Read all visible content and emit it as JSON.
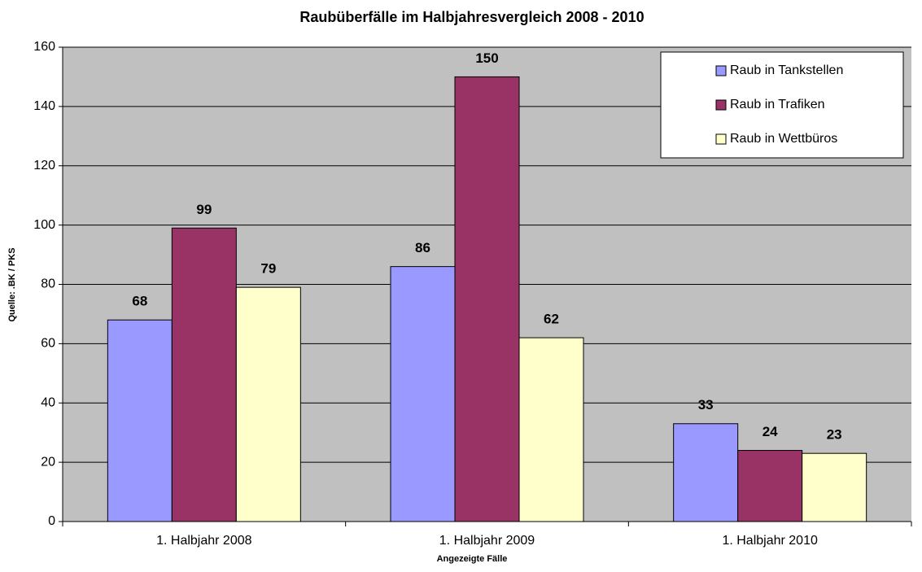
{
  "chart_data": {
    "type": "bar",
    "title": "Raubüberfälle im Halbjahresvergleich 2008 - 2010",
    "xlabel": "Angezeigte Fälle",
    "ylabel": "Quelle: .BK / PKS",
    "categories": [
      "1. Halbjahr 2008",
      "1. Halbjahr 2009",
      "1. Halbjahr 2010"
    ],
    "series": [
      {
        "name": "Raub in Tankstellen",
        "color": "#9999ff",
        "values": [
          68,
          86,
          33
        ]
      },
      {
        "name": "Raub in Trafiken",
        "color": "#993366",
        "values": [
          99,
          150,
          24
        ]
      },
      {
        "name": "Raub in Wettbüros",
        "color": "#ffffcc",
        "values": [
          79,
          62,
          23
        ]
      }
    ],
    "ylim": [
      0,
      160
    ],
    "yticks": [
      0,
      20,
      40,
      60,
      80,
      100,
      120,
      140,
      160
    ],
    "grid": true,
    "legend": "upper right",
    "background": "#c0c0c0"
  }
}
